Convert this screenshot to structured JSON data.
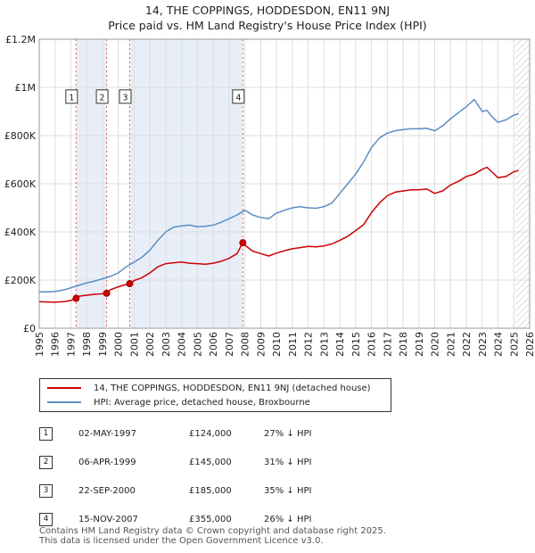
{
  "title_line1": "14, THE COPPINGS, HODDESDON, EN11 9NJ",
  "title_line2": "Price paid vs. HM Land Registry's House Price Index (HPI)",
  "colors": {
    "property": "#cc0000",
    "hpi": "#5b8ec4",
    "shade": "#e8eef8",
    "vline": "#e06060",
    "grid": "#dddddd"
  },
  "chart_data": {
    "type": "line",
    "xlim": [
      1995,
      2026
    ],
    "ylim": [
      0,
      1200000
    ],
    "x_ticks": [
      "1995",
      "1996",
      "1997",
      "1998",
      "1999",
      "2000",
      "2001",
      "2002",
      "2003",
      "2004",
      "2005",
      "2006",
      "2007",
      "2008",
      "2009",
      "2010",
      "2011",
      "2012",
      "2013",
      "2014",
      "2015",
      "2016",
      "2017",
      "2018",
      "2019",
      "2020",
      "2021",
      "2022",
      "2023",
      "2024",
      "2025",
      "2026"
    ],
    "y_ticks": [
      {
        "value": 0,
        "label": "£0"
      },
      {
        "value": 200000,
        "label": "£200K"
      },
      {
        "value": 400000,
        "label": "£400K"
      },
      {
        "value": 600000,
        "label": "£600K"
      },
      {
        "value": 800000,
        "label": "£800K"
      },
      {
        "value": 1000000,
        "label": "£1M"
      },
      {
        "value": 1200000,
        "label": "£1.2M"
      }
    ],
    "hatch_from_year": 2025.1,
    "shaded_ranges": [
      [
        1997.33,
        1999.26
      ],
      [
        2000.72,
        2007.87
      ]
    ],
    "series": [
      {
        "name": "14, THE COPPINGS, HODDESDON, EN11 9NJ (detached house)",
        "color": "#cc0000",
        "x": [
          1995,
          1995.5,
          1996,
          1996.5,
          1997,
          1997.33,
          1997.5,
          1998,
          1998.5,
          1999,
          1999.26,
          1999.5,
          2000,
          2000.3,
          2000.72,
          2001,
          2001.5,
          2002,
          2002.5,
          2003,
          2003.5,
          2004,
          2004.5,
          2005,
          2005.5,
          2006,
          2006.5,
          2007,
          2007.5,
          2007.87,
          2008,
          2008.5,
          2009,
          2009.5,
          2010,
          2010.5,
          2011,
          2011.5,
          2012,
          2012.5,
          2013,
          2013.5,
          2014,
          2014.5,
          2015,
          2015.5,
          2016,
          2016.5,
          2017,
          2017.5,
          2018,
          2018.5,
          2019,
          2019.5,
          2020,
          2020.5,
          2021,
          2021.5,
          2022,
          2022.5,
          2023,
          2023.3,
          2023.6,
          2024,
          2024.5,
          2025,
          2025.3
        ],
        "y": [
          110000,
          109000,
          108000,
          110000,
          115000,
          124000,
          133000,
          137000,
          141000,
          143000,
          145000,
          160000,
          172000,
          178000,
          185000,
          198000,
          210000,
          230000,
          255000,
          268000,
          272000,
          275000,
          270000,
          268000,
          266000,
          270000,
          278000,
          290000,
          310000,
          355000,
          345000,
          320000,
          310000,
          300000,
          312000,
          322000,
          330000,
          335000,
          340000,
          338000,
          342000,
          350000,
          365000,
          382000,
          405000,
          430000,
          480000,
          520000,
          550000,
          565000,
          570000,
          575000,
          575000,
          578000,
          560000,
          570000,
          595000,
          610000,
          630000,
          640000,
          660000,
          668000,
          650000,
          625000,
          630000,
          650000,
          655000
        ]
      },
      {
        "name": "HPI: Average price, detached house, Broxbourne",
        "color": "#5b8ec4",
        "x": [
          1995,
          1995.5,
          1996,
          1996.5,
          1997,
          1997.5,
          1998,
          1998.5,
          1999,
          1999.5,
          2000,
          2000.5,
          2001,
          2001.5,
          2002,
          2002.5,
          2003,
          2003.5,
          2004,
          2004.5,
          2005,
          2005.5,
          2006,
          2006.5,
          2007,
          2007.5,
          2008,
          2008.5,
          2009,
          2009.5,
          2010,
          2010.5,
          2011,
          2011.5,
          2012,
          2012.5,
          2013,
          2013.5,
          2014,
          2014.5,
          2015,
          2015.5,
          2016,
          2016.5,
          2017,
          2017.5,
          2018,
          2018.5,
          2019,
          2019.5,
          2020,
          2020.5,
          2021,
          2021.5,
          2022,
          2022.5,
          2023,
          2023.3,
          2023.6,
          2024,
          2024.5,
          2025,
          2025.3
        ],
        "y": [
          152000,
          151000,
          153000,
          158000,
          168000,
          178000,
          188000,
          196000,
          205000,
          215000,
          230000,
          255000,
          275000,
          295000,
          325000,
          365000,
          400000,
          420000,
          425000,
          428000,
          422000,
          423000,
          428000,
          440000,
          455000,
          470000,
          490000,
          470000,
          460000,
          455000,
          478000,
          490000,
          500000,
          505000,
          500000,
          498000,
          505000,
          520000,
          560000,
          600000,
          640000,
          690000,
          750000,
          790000,
          810000,
          820000,
          825000,
          828000,
          828000,
          830000,
          820000,
          840000,
          870000,
          895000,
          920000,
          950000,
          900000,
          905000,
          880000,
          855000,
          865000,
          885000,
          890000
        ]
      }
    ],
    "sales": [
      {
        "num": "1",
        "x": 1997.33,
        "y": 124000
      },
      {
        "num": "2",
        "x": 1999.26,
        "y": 145000
      },
      {
        "num": "3",
        "x": 2000.72,
        "y": 185000
      },
      {
        "num": "4",
        "x": 2007.87,
        "y": 355000
      }
    ],
    "label_y": 960000
  },
  "legend": {
    "property_label": "14, THE COPPINGS, HODDESDON, EN11 9NJ (detached house)",
    "hpi_label": "HPI: Average price, detached house, Broxbourne"
  },
  "transactions": [
    {
      "num": "1",
      "date": "02-MAY-1997",
      "price": "£124,000",
      "hpi": "27% ↓ HPI"
    },
    {
      "num": "2",
      "date": "06-APR-1999",
      "price": "£145,000",
      "hpi": "31% ↓ HPI"
    },
    {
      "num": "3",
      "date": "22-SEP-2000",
      "price": "£185,000",
      "hpi": "35% ↓ HPI"
    },
    {
      "num": "4",
      "date": "15-NOV-2007",
      "price": "£355,000",
      "hpi": "26% ↓ HPI"
    }
  ],
  "footer_line1": "Contains HM Land Registry data © Crown copyright and database right 2025.",
  "footer_line2": "This data is licensed under the Open Government Licence v3.0."
}
